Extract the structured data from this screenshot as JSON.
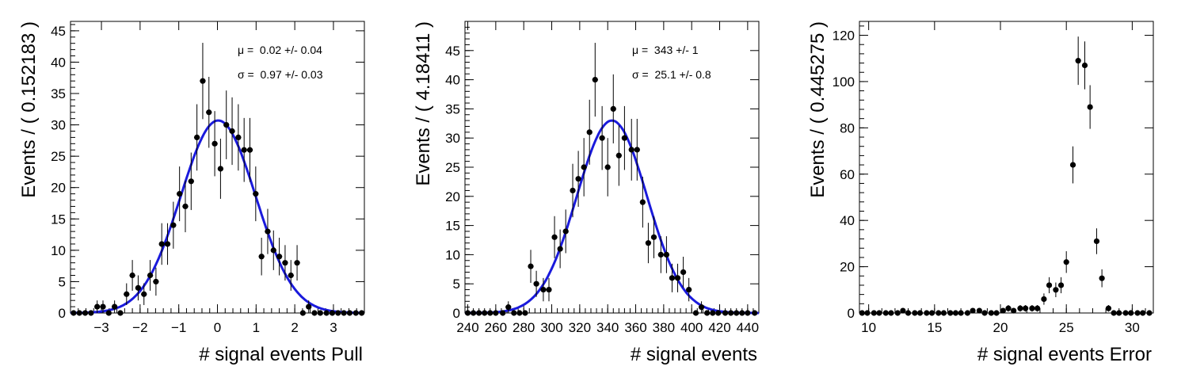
{
  "chart_data": [
    {
      "type": "scatter",
      "xlabel": "# signal events Pull",
      "ylabel": "Events / ( 0.152183 )",
      "xlim": [
        -3.8,
        3.8
      ],
      "ylim": [
        0,
        46.5
      ],
      "xticks": [
        -3,
        -2,
        -1,
        0,
        1,
        2,
        3
      ],
      "yticks": [
        0,
        5,
        10,
        15,
        20,
        25,
        30,
        35,
        40,
        45
      ],
      "stats": [
        {
          "symbol": "μ",
          "text": " =  0.02 +/- 0.04"
        },
        {
          "symbol": "σ",
          "text": " =  0.97 +/- 0.03"
        }
      ],
      "points": [
        [
          -3.72,
          0
        ],
        [
          -3.57,
          0
        ],
        [
          -3.42,
          0
        ],
        [
          -3.27,
          0
        ],
        [
          -3.11,
          1
        ],
        [
          -2.96,
          1
        ],
        [
          -2.81,
          0
        ],
        [
          -2.66,
          1
        ],
        [
          -2.51,
          0
        ],
        [
          -2.35,
          3
        ],
        [
          -2.2,
          6
        ],
        [
          -2.05,
          4
        ],
        [
          -1.9,
          3
        ],
        [
          -1.74,
          6
        ],
        [
          -1.59,
          5
        ],
        [
          -1.44,
          11
        ],
        [
          -1.29,
          11
        ],
        [
          -1.14,
          14
        ],
        [
          -0.98,
          19
        ],
        [
          -0.83,
          17
        ],
        [
          -0.68,
          21
        ],
        [
          -0.53,
          28
        ],
        [
          -0.38,
          37
        ],
        [
          -0.22,
          32
        ],
        [
          -0.07,
          27
        ],
        [
          0.08,
          23
        ],
        [
          0.23,
          30
        ],
        [
          0.38,
          29
        ],
        [
          0.54,
          28
        ],
        [
          0.69,
          26
        ],
        [
          0.84,
          26
        ],
        [
          0.99,
          19
        ],
        [
          1.14,
          9
        ],
        [
          1.3,
          13
        ],
        [
          1.45,
          10
        ],
        [
          1.6,
          9
        ],
        [
          1.75,
          8
        ],
        [
          1.9,
          6
        ],
        [
          2.06,
          8
        ],
        [
          2.21,
          0
        ],
        [
          2.36,
          1
        ],
        [
          2.51,
          0
        ],
        [
          2.66,
          0
        ],
        [
          2.82,
          0
        ],
        [
          2.97,
          0
        ],
        [
          3.12,
          0
        ],
        [
          3.27,
          0
        ],
        [
          3.42,
          0
        ],
        [
          3.58,
          0
        ],
        [
          3.73,
          0
        ]
      ],
      "fit": {
        "type": "gaussian",
        "mean": 0.02,
        "sigma": 0.97,
        "amplitude": 30.7,
        "color": "#1a1adc"
      }
    },
    {
      "type": "scatter",
      "xlabel": "# signal events",
      "ylabel": "Events / ( 4.18411 )",
      "xlim": [
        238,
        448
      ],
      "ylim": [
        0,
        50
      ],
      "xticks": [
        240,
        260,
        280,
        300,
        320,
        340,
        360,
        380,
        400,
        420,
        440
      ],
      "yticks": [
        0,
        5,
        10,
        15,
        20,
        25,
        30,
        35,
        40,
        45
      ],
      "stats": [
        {
          "symbol": "μ",
          "text": " =  343 +/- 1"
        },
        {
          "symbol": "σ",
          "text": " =  25.1 +/- 0.8"
        }
      ],
      "points": [
        [
          240,
          0
        ],
        [
          244,
          0
        ],
        [
          248,
          0
        ],
        [
          252,
          0
        ],
        [
          256,
          0
        ],
        [
          260,
          0
        ],
        [
          265,
          0
        ],
        [
          269,
          1
        ],
        [
          273,
          0
        ],
        [
          277,
          0
        ],
        [
          281,
          0
        ],
        [
          285,
          8
        ],
        [
          289,
          5
        ],
        [
          294,
          4
        ],
        [
          298,
          4
        ],
        [
          302,
          13
        ],
        [
          306,
          11
        ],
        [
          310,
          14
        ],
        [
          315,
          21
        ],
        [
          319,
          23
        ],
        [
          323,
          25
        ],
        [
          327,
          31
        ],
        [
          331,
          40
        ],
        [
          336,
          30
        ],
        [
          340,
          25
        ],
        [
          344,
          35
        ],
        [
          348,
          27
        ],
        [
          352,
          30
        ],
        [
          357,
          28
        ],
        [
          361,
          28
        ],
        [
          365,
          19
        ],
        [
          369,
          12
        ],
        [
          373,
          13
        ],
        [
          378,
          10
        ],
        [
          382,
          10
        ],
        [
          386,
          6
        ],
        [
          390,
          6
        ],
        [
          394,
          7
        ],
        [
          398,
          4
        ],
        [
          403,
          0
        ],
        [
          407,
          1
        ],
        [
          411,
          0
        ],
        [
          415,
          0
        ],
        [
          419,
          0
        ],
        [
          424,
          0
        ],
        [
          428,
          0
        ],
        [
          432,
          0
        ],
        [
          436,
          0
        ],
        [
          440,
          0
        ],
        [
          445,
          0
        ]
      ],
      "fit": {
        "type": "gaussian",
        "mean": 343,
        "sigma": 25.1,
        "amplitude": 33.0,
        "color": "#1a1adc"
      }
    },
    {
      "type": "scatter",
      "xlabel": "# signal events Error",
      "ylabel": "Events / ( 0.445275 )",
      "xlim": [
        9.3,
        31.6
      ],
      "ylim": [
        0,
        126
      ],
      "xticks": [
        10,
        15,
        20,
        25,
        30
      ],
      "yticks": [
        0,
        20,
        40,
        60,
        80,
        100,
        120
      ],
      "stats": [],
      "points": [
        [
          9.5,
          0
        ],
        [
          9.9,
          0
        ],
        [
          10.4,
          0
        ],
        [
          10.8,
          0
        ],
        [
          11.3,
          0
        ],
        [
          11.7,
          0
        ],
        [
          12.2,
          0
        ],
        [
          12.6,
          1
        ],
        [
          13.0,
          0
        ],
        [
          13.5,
          0
        ],
        [
          13.9,
          0
        ],
        [
          14.4,
          0
        ],
        [
          14.8,
          0
        ],
        [
          15.3,
          0
        ],
        [
          15.7,
          0
        ],
        [
          16.2,
          0
        ],
        [
          16.6,
          0
        ],
        [
          17.0,
          0
        ],
        [
          17.5,
          0
        ],
        [
          17.9,
          1
        ],
        [
          18.4,
          1
        ],
        [
          18.8,
          0
        ],
        [
          19.3,
          0
        ],
        [
          19.7,
          0
        ],
        [
          20.2,
          1
        ],
        [
          20.6,
          2
        ],
        [
          21.0,
          1
        ],
        [
          21.5,
          2
        ],
        [
          21.9,
          2
        ],
        [
          22.4,
          2
        ],
        [
          22.8,
          2
        ],
        [
          23.3,
          6
        ],
        [
          23.7,
          12
        ],
        [
          24.2,
          10
        ],
        [
          24.6,
          12
        ],
        [
          25.0,
          22
        ],
        [
          25.5,
          64
        ],
        [
          25.9,
          109
        ],
        [
          26.4,
          107
        ],
        [
          26.8,
          89
        ],
        [
          27.3,
          31
        ],
        [
          27.7,
          15
        ],
        [
          28.2,
          2
        ],
        [
          28.6,
          0
        ],
        [
          29.0,
          0
        ],
        [
          29.5,
          0
        ],
        [
          29.9,
          0
        ],
        [
          30.4,
          0
        ],
        [
          30.8,
          0
        ],
        [
          31.3,
          0
        ]
      ],
      "fit": null
    }
  ]
}
